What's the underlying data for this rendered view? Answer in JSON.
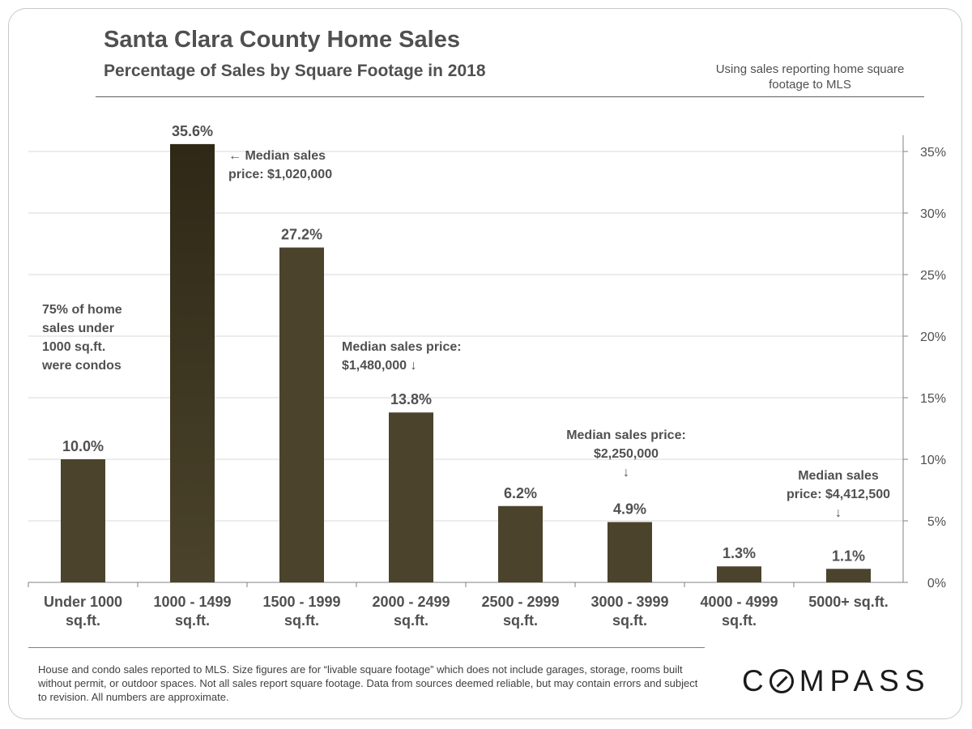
{
  "title": "Santa Clara County Home Sales",
  "subtitle": "Percentage of Sales by Square Footage in 2018",
  "note": "Using sales reporting home square footage to MLS",
  "footnote": "House and condo sales reported to MLS. Size figures are for “livable square footage” which does not include garages, storage, rooms built without permit, or outdoor spaces. Not all sales report square footage. Data from sources deemed reliable, but may contain errors and subject to revision.  All numbers are approximate.",
  "logo": "C○MPASS",
  "logo_text": {
    "first": "C",
    "rest": "MPASS"
  },
  "colors": {
    "bar_dark": "#2e2816",
    "bar": "#4b432b",
    "grid": "#d9d9d9",
    "text": "#505050"
  },
  "annotations": {
    "condos": [
      "75% of home",
      "sales under",
      "1000 sq.ft.",
      "were condos"
    ],
    "median_1000": [
      "← Median sales",
      "price: $1,020,000"
    ],
    "median_2000": [
      "Median sales price:",
      "$1,480,000 ↓"
    ],
    "median_3000": [
      "Median sales price:",
      "$2,250,000",
      "↓"
    ],
    "median_5000": [
      "Median sales",
      "price: $4,412,500",
      "↓"
    ]
  },
  "chart_data": {
    "type": "bar",
    "categories": [
      [
        "Under 1000",
        "sq.ft."
      ],
      [
        "1000 - 1499",
        "sq.ft."
      ],
      [
        "1500 - 1999",
        "sq.ft."
      ],
      [
        "2000 - 2499",
        "sq.ft."
      ],
      [
        "2500 - 2999",
        "sq.ft."
      ],
      [
        "3000 - 3999",
        "sq.ft."
      ],
      [
        "4000 - 4999",
        "sq.ft."
      ],
      [
        "5000+ sq.ft.",
        ""
      ]
    ],
    "values": [
      10.0,
      35.6,
      27.2,
      13.8,
      6.2,
      4.9,
      1.3,
      1.1
    ],
    "data_labels": [
      "10.0%",
      "35.6%",
      "27.2%",
      "13.8%",
      "6.2%",
      "4.9%",
      "1.3%",
      "1.1%"
    ],
    "ylim": [
      0,
      35
    ],
    "yticks": [
      0,
      5,
      10,
      15,
      20,
      25,
      30,
      35
    ],
    "ytick_labels": [
      "0%",
      "5%",
      "10%",
      "15%",
      "20%",
      "25%",
      "30%",
      "35%"
    ],
    "y_axis_side": "right",
    "grid": true,
    "title": "Santa Clara County Home Sales",
    "subtitle": "Percentage of Sales by Square Footage in 2018"
  }
}
